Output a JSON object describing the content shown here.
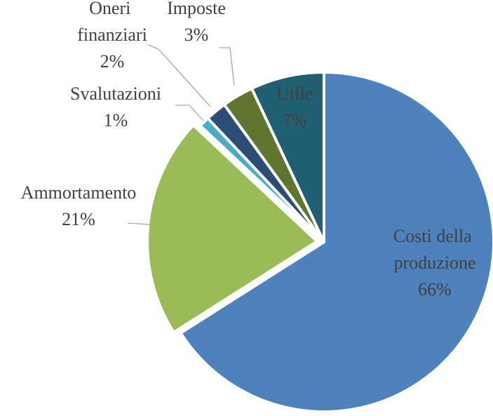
{
  "chart_data": {
    "type": "pie",
    "categories": [
      "Costi della produzione",
      "Ammortamento",
      "Svalutazioni",
      "Oneri finanziari",
      "Imposte",
      "Utile"
    ],
    "values": [
      66,
      21,
      1,
      2,
      3,
      7
    ],
    "value_labels": [
      "66%",
      "21%",
      "1%",
      "2%",
      "3%",
      "7%"
    ],
    "colors": [
      "#4f81bd",
      "#9bbb59",
      "#4bacc6",
      "#2c4d75",
      "#5f7530",
      "#215f73"
    ]
  }
}
